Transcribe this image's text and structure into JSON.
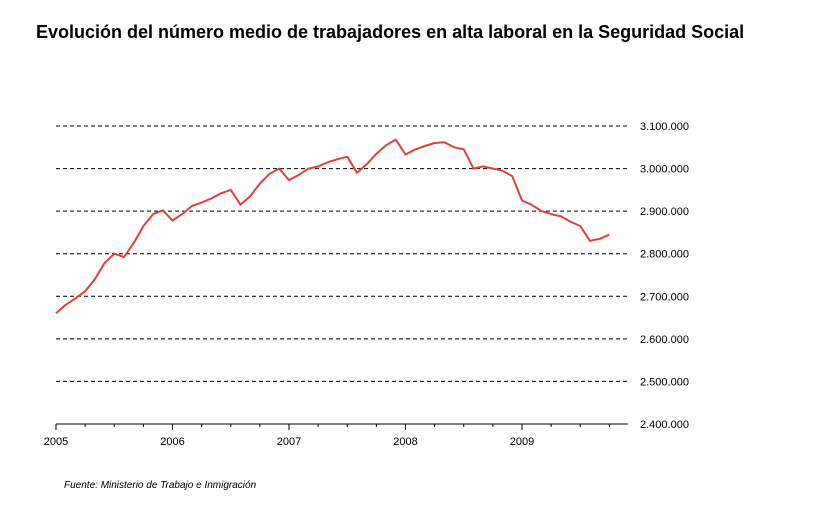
{
  "title": "Evolución del número medio de trabajadores en alta laboral en la Seguridad Social",
  "source": "Fuente: Ministerio de Trabajo e Inmigración",
  "chart_data": {
    "type": "line",
    "title": "Evolución del número medio de trabajadores en alta laboral en la Seguridad Social",
    "xlabel": "",
    "ylabel": "",
    "xlim": [
      2005,
      2010
    ],
    "ylim": [
      2400000,
      3100000
    ],
    "x_ticks": [
      "2005",
      "2006",
      "2007",
      "2008",
      "2009"
    ],
    "y_ticks": [
      "2.400.000",
      "2.500.000",
      "2.600.000",
      "2.700.000",
      "2.800.000",
      "2.900.000",
      "3.000.000",
      "3.100.000"
    ],
    "y_tick_values": [
      2400000,
      2500000,
      2600000,
      2700000,
      2800000,
      2900000,
      3000000,
      3100000
    ],
    "grid": "horizontal-dashed",
    "legend": "none",
    "line_color": "#e0413a",
    "series": [
      {
        "x": [
          "2005-01",
          "2005-02",
          "2005-03",
          "2005-04",
          "2005-05",
          "2005-06",
          "2005-07",
          "2005-08",
          "2005-09",
          "2005-10",
          "2005-11",
          "2005-12",
          "2006-01",
          "2006-02",
          "2006-03",
          "2006-04",
          "2006-05",
          "2006-06",
          "2006-07",
          "2006-08",
          "2006-09",
          "2006-10",
          "2006-11",
          "2006-12",
          "2007-01",
          "2007-02",
          "2007-03",
          "2007-04",
          "2007-05",
          "2007-06",
          "2007-07",
          "2007-08",
          "2007-09",
          "2007-10",
          "2007-11",
          "2007-12",
          "2008-01",
          "2008-02",
          "2008-03",
          "2008-04",
          "2008-05",
          "2008-06",
          "2008-07",
          "2008-08",
          "2008-09",
          "2008-10",
          "2008-11",
          "2008-12",
          "2009-01",
          "2009-02",
          "2009-03",
          "2009-04",
          "2009-05",
          "2009-06",
          "2009-07",
          "2009-08",
          "2009-09",
          "2009-10"
        ],
        "values": [
          2660000,
          2680000,
          2695000,
          2712000,
          2740000,
          2778000,
          2800000,
          2792000,
          2825000,
          2865000,
          2893000,
          2902000,
          2878000,
          2893000,
          2912000,
          2920000,
          2930000,
          2942000,
          2950000,
          2915000,
          2935000,
          2965000,
          2988000,
          3000000,
          2973000,
          2985000,
          3000000,
          3005000,
          3015000,
          3022000,
          3028000,
          2990000,
          3010000,
          3035000,
          3055000,
          3068000,
          3033000,
          3045000,
          3053000,
          3060000,
          3062000,
          3050000,
          3045000,
          3000000,
          3005000,
          3000000,
          2995000,
          2982000,
          2925000,
          2915000,
          2900000,
          2893000,
          2888000,
          2875000,
          2865000,
          2830000,
          2835000,
          2845000
        ]
      }
    ]
  }
}
